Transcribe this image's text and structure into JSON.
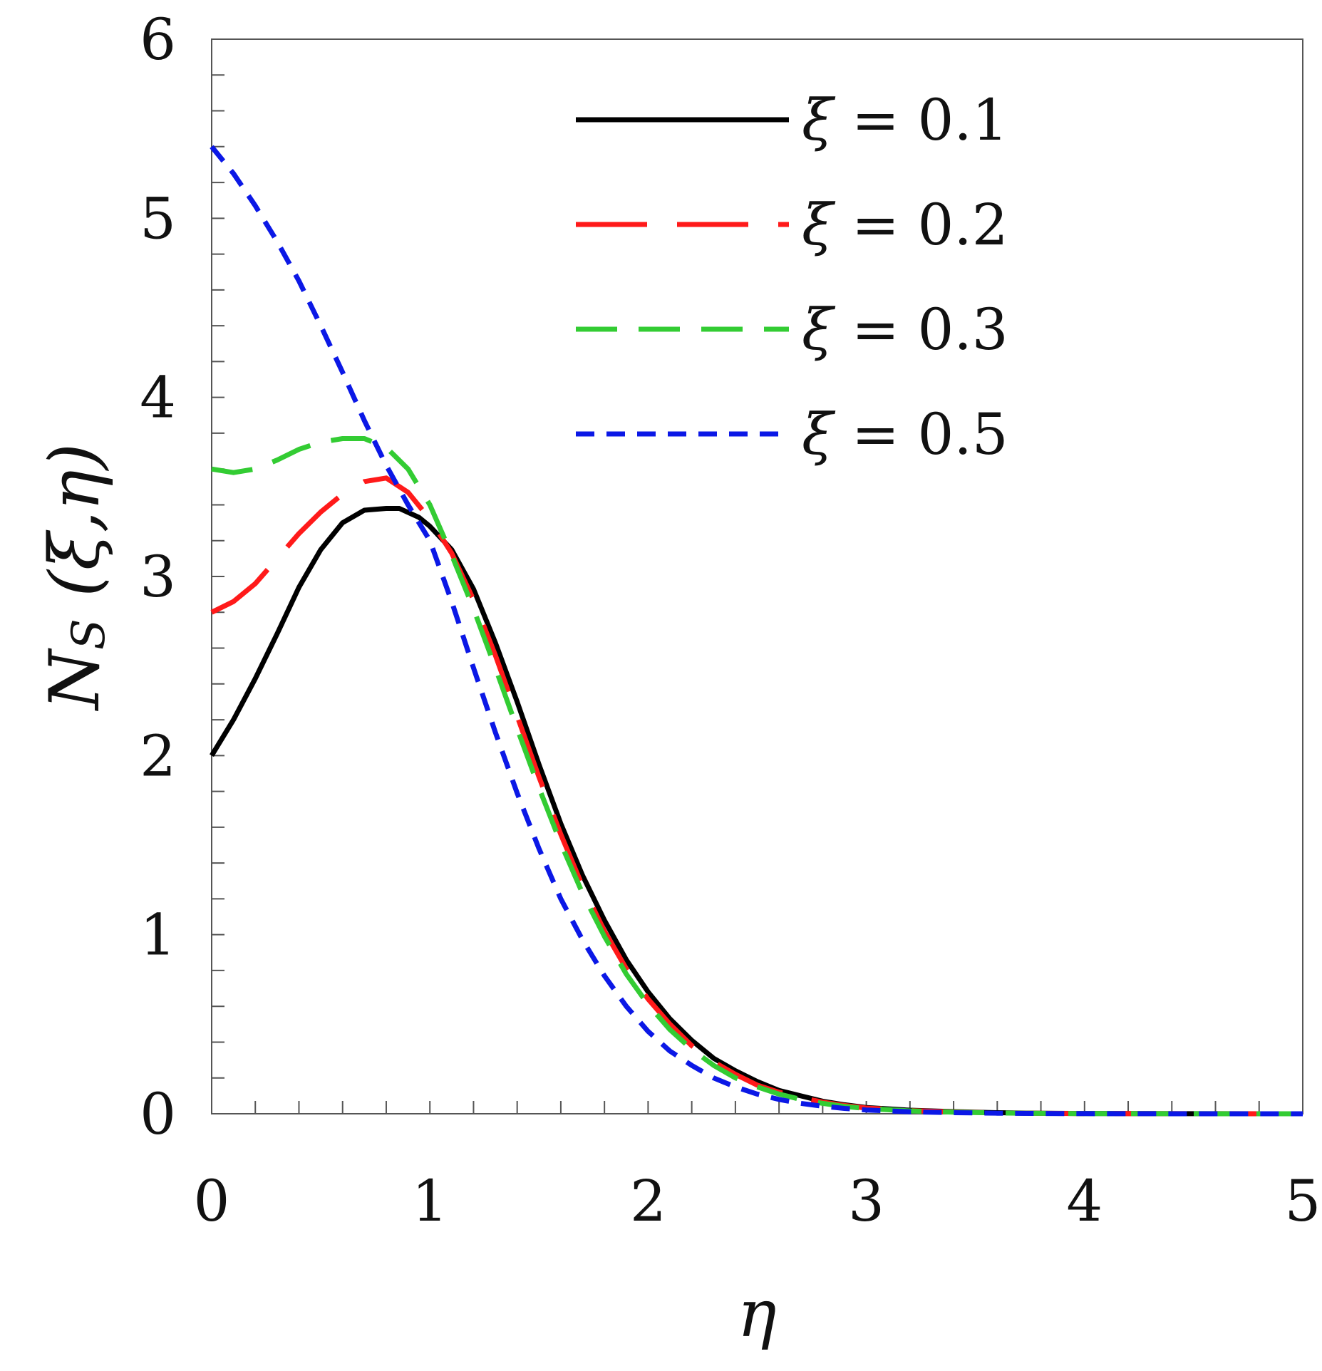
{
  "chart_data": {
    "type": "line",
    "title": "",
    "xlabel": "η",
    "ylabel_main": "N",
    "ylabel_sub": "S",
    "ylabel_args": " (ξ,η)",
    "xlim": [
      0,
      5
    ],
    "ylim": [
      0,
      6
    ],
    "x_ticks": [
      0,
      1,
      2,
      3,
      4,
      5
    ],
    "x_tick_labels": [
      "0",
      "1",
      "2",
      "3",
      "4",
      "5"
    ],
    "y_ticks": [
      0,
      1,
      2,
      3,
      4,
      5,
      6
    ],
    "y_tick_labels": [
      "0",
      "1",
      "2",
      "3",
      "4",
      "5",
      "6"
    ],
    "grid": false,
    "legend_position": "top-right",
    "series": [
      {
        "name": "ξ = 0.1",
        "legend_symbol": "ξ",
        "legend_value": "= 0.1",
        "color": "#000000",
        "style": "solid",
        "x": [
          0,
          0.1,
          0.2,
          0.3,
          0.4,
          0.5,
          0.6,
          0.7,
          0.8,
          0.86,
          0.95,
          1.0,
          1.1,
          1.2,
          1.3,
          1.4,
          1.5,
          1.6,
          1.7,
          1.8,
          1.9,
          2.0,
          2.1,
          2.2,
          2.3,
          2.4,
          2.5,
          2.6,
          2.7,
          2.8,
          2.9,
          3.0,
          3.2,
          3.4,
          3.6,
          3.8,
          4.0,
          4.5,
          5.0
        ],
        "y": [
          2.0,
          2.2,
          2.43,
          2.68,
          2.94,
          3.15,
          3.3,
          3.37,
          3.38,
          3.38,
          3.33,
          3.28,
          3.15,
          2.93,
          2.63,
          2.3,
          1.95,
          1.62,
          1.33,
          1.08,
          0.86,
          0.68,
          0.53,
          0.41,
          0.31,
          0.24,
          0.18,
          0.13,
          0.1,
          0.07,
          0.05,
          0.035,
          0.02,
          0.012,
          0.006,
          0.003,
          0.0015,
          0.0003,
          0.0
        ]
      },
      {
        "name": "ξ = 0.2",
        "legend_symbol": "ξ",
        "legend_value": "= 0.2",
        "color": "#ff1a1a",
        "style": "long-dash",
        "x": [
          0,
          0.1,
          0.2,
          0.3,
          0.4,
          0.5,
          0.6,
          0.7,
          0.8,
          0.9,
          1.0,
          1.1,
          1.2,
          1.3,
          1.4,
          1.5,
          1.6,
          1.7,
          1.8,
          1.9,
          2.0,
          2.1,
          2.2,
          2.3,
          2.4,
          2.5,
          2.6,
          2.7,
          2.8,
          2.9,
          3.0,
          3.2,
          3.4,
          3.6,
          3.8,
          4.0,
          4.5,
          5.0
        ],
        "y": [
          2.8,
          2.86,
          2.96,
          3.1,
          3.24,
          3.36,
          3.46,
          3.53,
          3.55,
          3.47,
          3.32,
          3.13,
          2.87,
          2.56,
          2.22,
          1.88,
          1.56,
          1.27,
          1.02,
          0.81,
          0.64,
          0.5,
          0.38,
          0.29,
          0.22,
          0.16,
          0.12,
          0.09,
          0.065,
          0.046,
          0.032,
          0.018,
          0.01,
          0.005,
          0.0025,
          0.0012,
          0.0002,
          0.0
        ]
      },
      {
        "name": "ξ = 0.3",
        "legend_symbol": "ξ",
        "legend_value": "= 0.3",
        "color": "#33cc33",
        "style": "dash",
        "x": [
          0,
          0.1,
          0.2,
          0.3,
          0.4,
          0.5,
          0.6,
          0.7,
          0.8,
          0.9,
          1.0,
          1.1,
          1.2,
          1.3,
          1.4,
          1.5,
          1.6,
          1.7,
          1.8,
          1.9,
          2.0,
          2.1,
          2.2,
          2.3,
          2.4,
          2.5,
          2.6,
          2.7,
          2.8,
          2.9,
          3.0,
          3.2,
          3.4,
          3.6,
          3.8,
          4.0,
          4.5,
          5.0
        ],
        "y": [
          3.6,
          3.58,
          3.6,
          3.65,
          3.71,
          3.75,
          3.77,
          3.77,
          3.72,
          3.6,
          3.4,
          3.12,
          2.82,
          2.49,
          2.15,
          1.82,
          1.51,
          1.23,
          0.99,
          0.78,
          0.61,
          0.47,
          0.36,
          0.27,
          0.2,
          0.15,
          0.11,
          0.08,
          0.058,
          0.041,
          0.029,
          0.016,
          0.009,
          0.0045,
          0.0022,
          0.0011,
          0.0002,
          0.0
        ]
      },
      {
        "name": "ξ = 0.5",
        "legend_symbol": "ξ",
        "legend_value": "= 0.5",
        "color": "#0b18e6",
        "style": "short-dash",
        "x": [
          0,
          0.1,
          0.2,
          0.3,
          0.4,
          0.5,
          0.6,
          0.7,
          0.8,
          0.9,
          1.0,
          1.1,
          1.2,
          1.3,
          1.4,
          1.5,
          1.6,
          1.7,
          1.8,
          1.9,
          2.0,
          2.1,
          2.2,
          2.3,
          2.4,
          2.5,
          2.6,
          2.7,
          2.8,
          2.9,
          3.0,
          3.2,
          3.4,
          3.6,
          3.8,
          4.0,
          4.5,
          5.0
        ],
        "y": [
          5.4,
          5.25,
          5.07,
          4.87,
          4.65,
          4.4,
          4.14,
          3.87,
          3.62,
          3.4,
          3.2,
          2.86,
          2.49,
          2.13,
          1.79,
          1.48,
          1.2,
          0.97,
          0.77,
          0.6,
          0.46,
          0.35,
          0.27,
          0.2,
          0.15,
          0.11,
          0.08,
          0.058,
          0.042,
          0.03,
          0.021,
          0.011,
          0.006,
          0.003,
          0.0015,
          0.0008,
          0.0001,
          0.0
        ]
      }
    ]
  }
}
